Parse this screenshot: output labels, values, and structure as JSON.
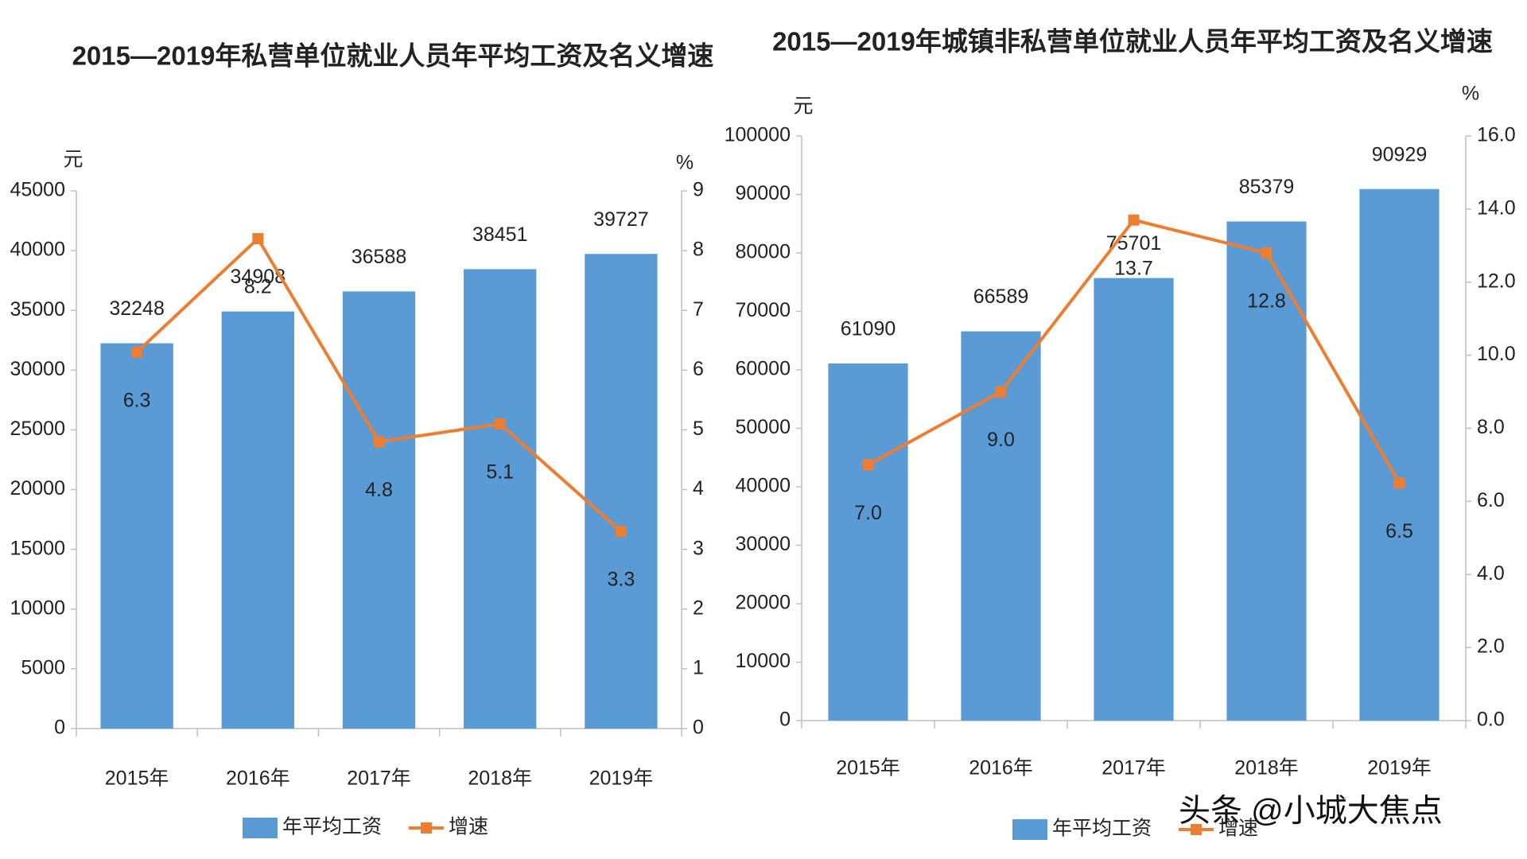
{
  "chart_data": [
    {
      "type": "bar",
      "title": "2015—2019年私营单位就业人员年平均工资及名义增速",
      "y_label": "元",
      "y2_label": "%",
      "categories": [
        "2015年",
        "2016年",
        "2017年",
        "2018年",
        "2019年"
      ],
      "series": [
        {
          "name": "年平均工资",
          "color": "#5b9bd5",
          "type": "bar",
          "values": [
            32248,
            34908,
            36588,
            38451,
            39727
          ]
        },
        {
          "name": "增速",
          "color": "#ed7d31",
          "type": "line",
          "axis": "y2",
          "values": [
            6.3,
            8.2,
            4.8,
            5.1,
            3.3
          ]
        }
      ],
      "ylim": [
        0,
        45000
      ],
      "yticks": [
        0,
        5000,
        10000,
        15000,
        20000,
        25000,
        30000,
        35000,
        40000,
        45000
      ],
      "y2lim": [
        0,
        9
      ],
      "y2ticks": [
        0,
        1,
        2,
        3,
        4,
        5,
        6,
        7,
        8,
        9
      ],
      "grid": false,
      "legend": "bottom"
    },
    {
      "type": "bar",
      "title": "2015—2019年城镇非私营单位就业人员年平均工资及名义增速",
      "y_label": "元",
      "y2_label": "%",
      "categories": [
        "2015年",
        "2016年",
        "2017年",
        "2018年",
        "2019年"
      ],
      "series": [
        {
          "name": "年平均工资",
          "color": "#5b9bd5",
          "type": "bar",
          "values": [
            61090,
            66589,
            75701,
            85379,
            90929
          ]
        },
        {
          "name": "增速",
          "color": "#ed7d31",
          "type": "line",
          "axis": "y2",
          "values": [
            7.0,
            9.0,
            13.7,
            12.8,
            6.5
          ],
          "value_labels": [
            "7.0",
            "9.0",
            "13.7",
            "12.8",
            "6.5"
          ]
        }
      ],
      "ylim": [
        0,
        100000
      ],
      "yticks": [
        0,
        10000,
        20000,
        30000,
        40000,
        50000,
        60000,
        70000,
        80000,
        90000,
        100000
      ],
      "y2lim": [
        0,
        16
      ],
      "y2ticks": [
        {
          "value": 0,
          "label": "0.0"
        },
        {
          "value": 2,
          "label": "2.0"
        },
        {
          "value": 4,
          "label": "4.0"
        },
        {
          "value": 6,
          "label": "6.0"
        },
        {
          "value": 8,
          "label": "8.0"
        },
        {
          "value": 10,
          "label": "10.0"
        },
        {
          "value": 12,
          "label": "12.0"
        },
        {
          "value": 14,
          "label": "14.0"
        },
        {
          "value": 16,
          "label": "16.0"
        }
      ],
      "grid": false,
      "legend": "bottom"
    }
  ],
  "watermark": "头条 @小城大焦点"
}
